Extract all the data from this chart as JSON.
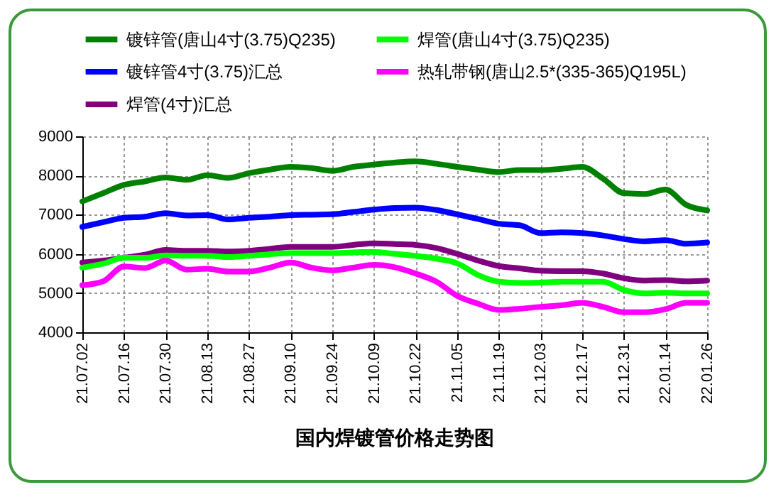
{
  "chart_data": {
    "type": "line",
    "title": "国内焊镀管价格走势图",
    "categories": [
      "21.07.02",
      null,
      "21.07.16",
      null,
      "21.07.30",
      null,
      "21.08.13",
      null,
      "21.08.27",
      null,
      "21.09.10",
      null,
      "21.09.24",
      null,
      "21.10.09",
      null,
      "21.10.22",
      null,
      "21.11.05",
      null,
      "21.11.19",
      null,
      "21.12.03",
      null,
      "21.12.17",
      null,
      "21.12.31",
      null,
      "22.01.14",
      null,
      "22.01.26"
    ],
    "series": [
      {
        "name": "镀锌管(唐山4寸(3.75)Q235)",
        "color": "#008000",
        "values": [
          7340,
          7550,
          7760,
          7850,
          7950,
          7890,
          8010,
          7940,
          8060,
          8150,
          8220,
          8190,
          8120,
          8220,
          8280,
          8330,
          8360,
          8300,
          8220,
          8150,
          8090,
          8140,
          8140,
          8170,
          8220,
          7920,
          7550,
          7530,
          7640,
          7250,
          7110
        ]
      },
      {
        "name": "镀锌管4寸(3.75)汇总",
        "color": "#0000ff",
        "values": [
          6690,
          6810,
          6920,
          6950,
          7040,
          6980,
          6990,
          6880,
          6920,
          6950,
          6990,
          7000,
          7010,
          7070,
          7130,
          7170,
          7180,
          7120,
          7010,
          6890,
          6770,
          6730,
          6530,
          6550,
          6530,
          6470,
          6380,
          6320,
          6350,
          6260,
          6290
        ]
      },
      {
        "name": "焊管(4寸)汇总",
        "color": "#800080",
        "values": [
          5780,
          5830,
          5900,
          5980,
          6100,
          6080,
          6080,
          6060,
          6080,
          6130,
          6180,
          6180,
          6180,
          6230,
          6270,
          6250,
          6230,
          6150,
          6000,
          5830,
          5690,
          5630,
          5570,
          5560,
          5560,
          5500,
          5380,
          5320,
          5330,
          5300,
          5320
        ]
      },
      {
        "name": "焊管(唐山4寸(3.75)Q235)",
        "color": "#00ff00",
        "values": [
          5650,
          5750,
          5900,
          5900,
          5960,
          5950,
          5950,
          5920,
          5950,
          5990,
          6020,
          6020,
          6020,
          6040,
          6050,
          6000,
          5950,
          5880,
          5760,
          5460,
          5290,
          5260,
          5270,
          5290,
          5290,
          5290,
          5080,
          4990,
          5010,
          4990,
          4990
        ]
      },
      {
        "name": "热轧带钢(唐山2.5*(335-365)Q195L)",
        "color": "#ff00ff",
        "values": [
          5200,
          5300,
          5680,
          5640,
          5830,
          5600,
          5620,
          5550,
          5550,
          5650,
          5780,
          5650,
          5580,
          5650,
          5720,
          5660,
          5500,
          5290,
          4930,
          4730,
          4570,
          4600,
          4650,
          4690,
          4750,
          4650,
          4510,
          4510,
          4590,
          4750,
          4750
        ]
      }
    ],
    "ylim": [
      4000,
      9000
    ],
    "yticks": [
      4000,
      5000,
      6000,
      7000,
      8000,
      9000
    ],
    "grid": true,
    "legend": "top",
    "line_style": "solid"
  }
}
